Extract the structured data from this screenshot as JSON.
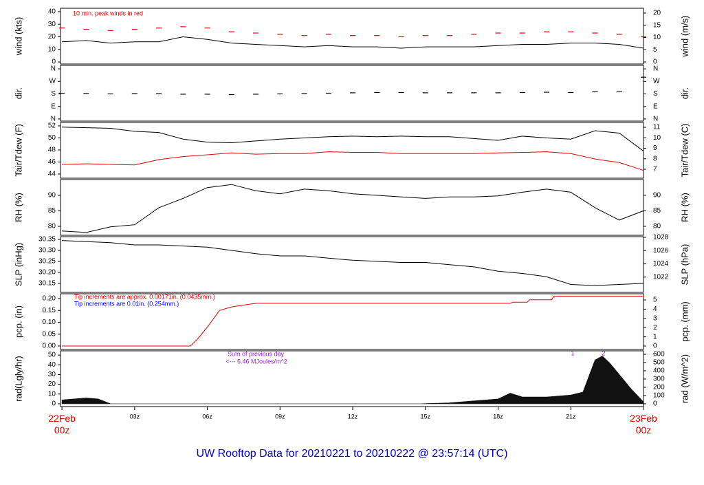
{
  "title": "UW Rooftop Data for 20210221  to  20210222 @ 23:57:14  (UTC)",
  "chart_data": [
    {
      "type": "line",
      "ylabel": "wind (kts)",
      "y2label": "wind (m/s)",
      "xlim": [
        -0.06,
        24
      ],
      "ylim": [
        -1.6,
        42.7
      ],
      "yticks": [
        0,
        10,
        20,
        30,
        40
      ],
      "y2lim": [
        -0.85,
        21.97
      ],
      "y2ticks": [
        0,
        5,
        10,
        15,
        20
      ],
      "annotations": [
        {
          "text": "10 min. peak winds in red",
          "color": "#e00000"
        }
      ],
      "x": [
        0,
        1,
        2,
        3,
        4,
        5,
        6,
        7,
        8,
        9,
        10,
        11,
        12,
        13,
        14,
        15,
        16,
        17,
        18,
        19,
        20,
        21,
        22,
        23,
        24
      ],
      "series": [
        {
          "color": "#000000",
          "values": [
            16,
            17,
            15,
            16,
            16,
            20,
            18,
            15,
            14,
            13,
            12,
            13,
            12,
            12,
            11,
            12,
            12,
            12,
            13,
            14,
            14,
            15,
            15,
            14,
            11
          ]
        },
        {
          "color": "#e00000",
          "marker": "dash",
          "values": [
            27,
            26,
            25,
            26,
            27,
            28,
            27,
            24,
            23,
            22,
            21,
            22,
            21,
            21,
            20,
            21,
            21,
            22,
            23,
            23,
            24,
            24,
            23,
            22,
            20
          ]
        }
      ]
    },
    {
      "type": "line",
      "ylabel": "dir.",
      "y2label": "dir.",
      "xlim": [
        -0.06,
        24
      ],
      "ylim": [
        -15,
        385
      ],
      "yticks": [
        {
          "value": 0,
          "label": "N"
        },
        {
          "value": 90,
          "label": "E"
        },
        {
          "value": 180,
          "label": "S"
        },
        {
          "value": 270,
          "label": "W"
        },
        {
          "value": 360,
          "label": "N"
        }
      ],
      "y2lim": [
        -15,
        385
      ],
      "y2ticks": [
        {
          "value": 0,
          "label": "N"
        },
        {
          "value": 90,
          "label": "E"
        },
        {
          "value": 180,
          "label": "S"
        },
        {
          "value": 270,
          "label": "W"
        },
        {
          "value": 360,
          "label": "N"
        }
      ],
      "x": [
        0,
        1,
        2,
        3,
        4,
        5,
        6,
        7,
        8,
        9,
        10,
        11,
        12,
        13,
        14,
        15,
        16,
        17,
        18,
        19,
        20,
        21,
        22,
        23,
        24
      ],
      "series": [
        {
          "color": "#000000",
          "marker": "dash",
          "values": [
            185,
            183,
            180,
            182,
            182,
            178,
            178,
            175,
            178,
            180,
            182,
            185,
            188,
            190,
            190,
            188,
            188,
            188,
            188,
            190,
            192,
            190,
            195,
            195,
            300
          ]
        }
      ]
    },
    {
      "type": "line",
      "ylabel": "Tair/Tdew (F)",
      "y2label": "Tair/Tdew (C)",
      "xlim": [
        -0.06,
        24
      ],
      "ylim": [
        43.31,
        52.57
      ],
      "yticks": [
        44,
        46,
        48,
        50,
        52
      ],
      "y2lim": [
        6.15,
        11.46
      ],
      "y2ticks": [
        7,
        8,
        9,
        10,
        11
      ],
      "x": [
        0,
        1,
        2,
        3,
        4,
        5,
        6,
        7,
        8,
        9,
        10,
        11,
        12,
        13,
        14,
        15,
        16,
        17,
        18,
        19,
        20,
        21,
        22,
        23,
        24
      ],
      "series": [
        {
          "color": "#000000",
          "values": [
            51.8,
            51.7,
            51.6,
            51.1,
            50.9,
            49.8,
            49.3,
            49.2,
            49.5,
            49.8,
            50.0,
            50.2,
            50.3,
            50.2,
            50.3,
            50.2,
            50.2,
            49.9,
            49.6,
            50.3,
            50.0,
            49.8,
            51.2,
            50.8,
            47.8
          ]
        },
        {
          "color": "#e00000",
          "values": [
            45.6,
            45.7,
            45.6,
            45.5,
            46.4,
            46.9,
            47.2,
            47.5,
            47.3,
            47.4,
            47.4,
            47.7,
            47.6,
            47.6,
            47.4,
            47.4,
            47.4,
            47.4,
            47.5,
            47.6,
            47.7,
            47.4,
            46.5,
            45.9,
            44.6
          ]
        }
      ]
    },
    {
      "type": "line",
      "ylabel": "RH (%)",
      "y2label": "RH (%)",
      "xlim": [
        -0.06,
        24
      ],
      "ylim": [
        77.1,
        95.1
      ],
      "yticks": [
        80,
        85,
        90
      ],
      "y2lim": [
        77.1,
        95.1
      ],
      "y2ticks": [
        80,
        85,
        90
      ],
      "x": [
        0,
        1,
        2,
        3,
        4,
        5,
        6,
        7,
        8,
        9,
        10,
        11,
        12,
        13,
        14,
        15,
        16,
        17,
        18,
        19,
        20,
        21,
        22,
        23,
        24
      ],
      "series": [
        {
          "color": "#000000",
          "values": [
            78.5,
            78.0,
            79.8,
            80.5,
            86,
            89,
            92.5,
            93.5,
            91.5,
            90.5,
            92,
            91.5,
            90.5,
            90,
            89.5,
            89,
            89.5,
            89.5,
            89.8,
            91,
            92,
            91,
            86,
            82,
            85
          ]
        }
      ]
    },
    {
      "type": "line",
      "ylabel": "SLP (inHg)",
      "y2label": "SLP (hPa)",
      "xlim": [
        -0.06,
        24
      ],
      "ylim": [
        30.109,
        30.3625
      ],
      "yticks": [
        {
          "value": 30.15,
          "label": "30.15"
        },
        {
          "value": 30.2,
          "label": "30.20"
        },
        {
          "value": 30.25,
          "label": "30.25"
        },
        {
          "value": 30.3,
          "label": "30.30"
        },
        {
          "value": 30.35,
          "label": "30.35"
        }
      ],
      "y2lim": [
        1019.7,
        1028.1
      ],
      "y2ticks": [
        1022,
        1024,
        1026,
        1028
      ],
      "x": [
        0,
        1,
        2,
        3,
        4,
        5,
        6,
        7,
        8,
        9,
        10,
        11,
        12,
        13,
        14,
        15,
        16,
        17,
        18,
        19,
        20,
        21,
        22,
        23,
        24
      ],
      "series": [
        {
          "color": "#000000",
          "values": [
            30.345,
            30.34,
            30.335,
            30.325,
            30.325,
            30.32,
            30.315,
            30.3,
            30.285,
            30.275,
            30.275,
            30.265,
            30.255,
            30.25,
            30.245,
            30.245,
            30.235,
            30.225,
            30.205,
            30.195,
            30.18,
            30.145,
            30.14,
            30.145,
            30.15
          ]
        }
      ]
    },
    {
      "type": "line",
      "ylabel": "pcp. (in)",
      "y2label": "pcp. (mm)",
      "xlim": [
        -0.06,
        24
      ],
      "ylim": [
        -0.0145,
        0.2203
      ],
      "yticks": [
        {
          "value": 0,
          "label": "0.00"
        },
        {
          "value": 0.05,
          "label": "0.05"
        },
        {
          "value": 0.1,
          "label": "0.10"
        },
        {
          "value": 0.15,
          "label": "0.15"
        },
        {
          "value": 0.2,
          "label": "0.20"
        }
      ],
      "y2lim": [
        -0.37,
        5.67
      ],
      "y2ticks": [
        0,
        1,
        2,
        3,
        4,
        5
      ],
      "annotations": [
        {
          "text": "Tip increments are approx. 0.00171in. (0.0435mm.)",
          "color": "#e00000"
        },
        {
          "text": "Tip increments are 0.01in. (0.254mm.)",
          "color": "#0000ee"
        }
      ],
      "x": [
        0,
        5.3,
        5.6,
        6,
        6.5,
        7,
        8,
        18.5,
        18.6,
        19.2,
        19.3,
        20.2,
        20.3,
        24
      ],
      "series": [
        {
          "color": "#e00000",
          "values": [
            0,
            0,
            0.03,
            0.08,
            0.15,
            0.165,
            0.18,
            0.18,
            0.185,
            0.185,
            0.195,
            0.195,
            0.21,
            0.21
          ]
        }
      ]
    },
    {
      "type": "area",
      "ylabel": "rad(Lgly/hr)",
      "y2label": "rad (W/m^2)",
      "xlim": [
        -0.06,
        24
      ],
      "ylim": [
        -2.86,
        54.3
      ],
      "yticks": [
        0,
        10,
        20,
        30,
        40,
        50
      ],
      "y2lim": [
        -33.8,
        642
      ],
      "y2ticks": [
        0,
        100,
        200,
        300,
        400,
        500,
        600
      ],
      "annotations": [
        {
          "text": "Sum of previous day",
          "color": "#9a1fd0"
        },
        {
          "text": "<--- 5.46 MJoules/m^2",
          "color": "#9a1fd0"
        },
        {
          "text": "1",
          "color": "#9a1fd0"
        },
        {
          "text": "2",
          "color": "#9a1fd0"
        }
      ],
      "xticks": [
        {
          "value": 0,
          "label": "22Feb 00z"
        },
        {
          "value": 3,
          "label": "03z"
        },
        {
          "value": 6,
          "label": "06z"
        },
        {
          "value": 9,
          "label": "09z"
        },
        {
          "value": 12,
          "label": "12z"
        },
        {
          "value": 15,
          "label": "15z"
        },
        {
          "value": 18,
          "label": "18z"
        },
        {
          "value": 21,
          "label": "21z"
        },
        {
          "value": 24,
          "label": "23Feb 00z"
        }
      ],
      "x": [
        0,
        1,
        1.5,
        2,
        2.1,
        14.8,
        16,
        17,
        18,
        18.5,
        19,
        20,
        21,
        21.5,
        22,
        22.3,
        22.6,
        23,
        23.5,
        24
      ],
      "series": [
        {
          "color": "#111111",
          "values": [
            4,
            6,
            5,
            0,
            0,
            0,
            1,
            3,
            5,
            11,
            7,
            7,
            9,
            12,
            45,
            49,
            42,
            30,
            15,
            2
          ]
        }
      ]
    }
  ]
}
